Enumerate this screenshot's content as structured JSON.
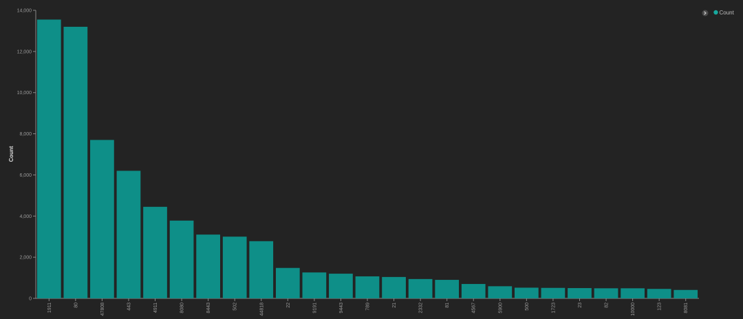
{
  "legend": {
    "toggle_icon": "chevron-right-icon",
    "label": "Count"
  },
  "colors": {
    "background": "#232323",
    "bar": "#0e8f88",
    "axis": "#8a8a8a",
    "legend_dot": "#17a89d"
  },
  "chart_data": {
    "type": "bar",
    "ylabel": "Count",
    "xlabel": "",
    "ylim": [
      0,
      14000
    ],
    "yticks": [
      0,
      2000,
      4000,
      6000,
      8000,
      10000,
      12000,
      14000
    ],
    "ytick_labels": [
      "0",
      "2,000",
      "4,000",
      "6,000",
      "8,000",
      "10,000",
      "12,000",
      "14,000"
    ],
    "grid": false,
    "legend_position": "top-right",
    "categories": [
      "1911",
      "80",
      "47808",
      "443",
      "4911",
      "8080",
      "8443",
      "502",
      "44818",
      "22",
      "9191",
      "9443",
      "789",
      "21",
      "2332",
      "81",
      "4567",
      "5900",
      "500",
      "1723",
      "23",
      "82",
      "10000",
      "123",
      "8081"
    ],
    "series": [
      {
        "name": "Count",
        "values": [
          13550,
          13200,
          7700,
          6200,
          4450,
          3780,
          3100,
          3000,
          2780,
          1480,
          1260,
          1200,
          1070,
          1040,
          940,
          900,
          700,
          590,
          520,
          510,
          500,
          490,
          490,
          460,
          410
        ]
      }
    ]
  }
}
